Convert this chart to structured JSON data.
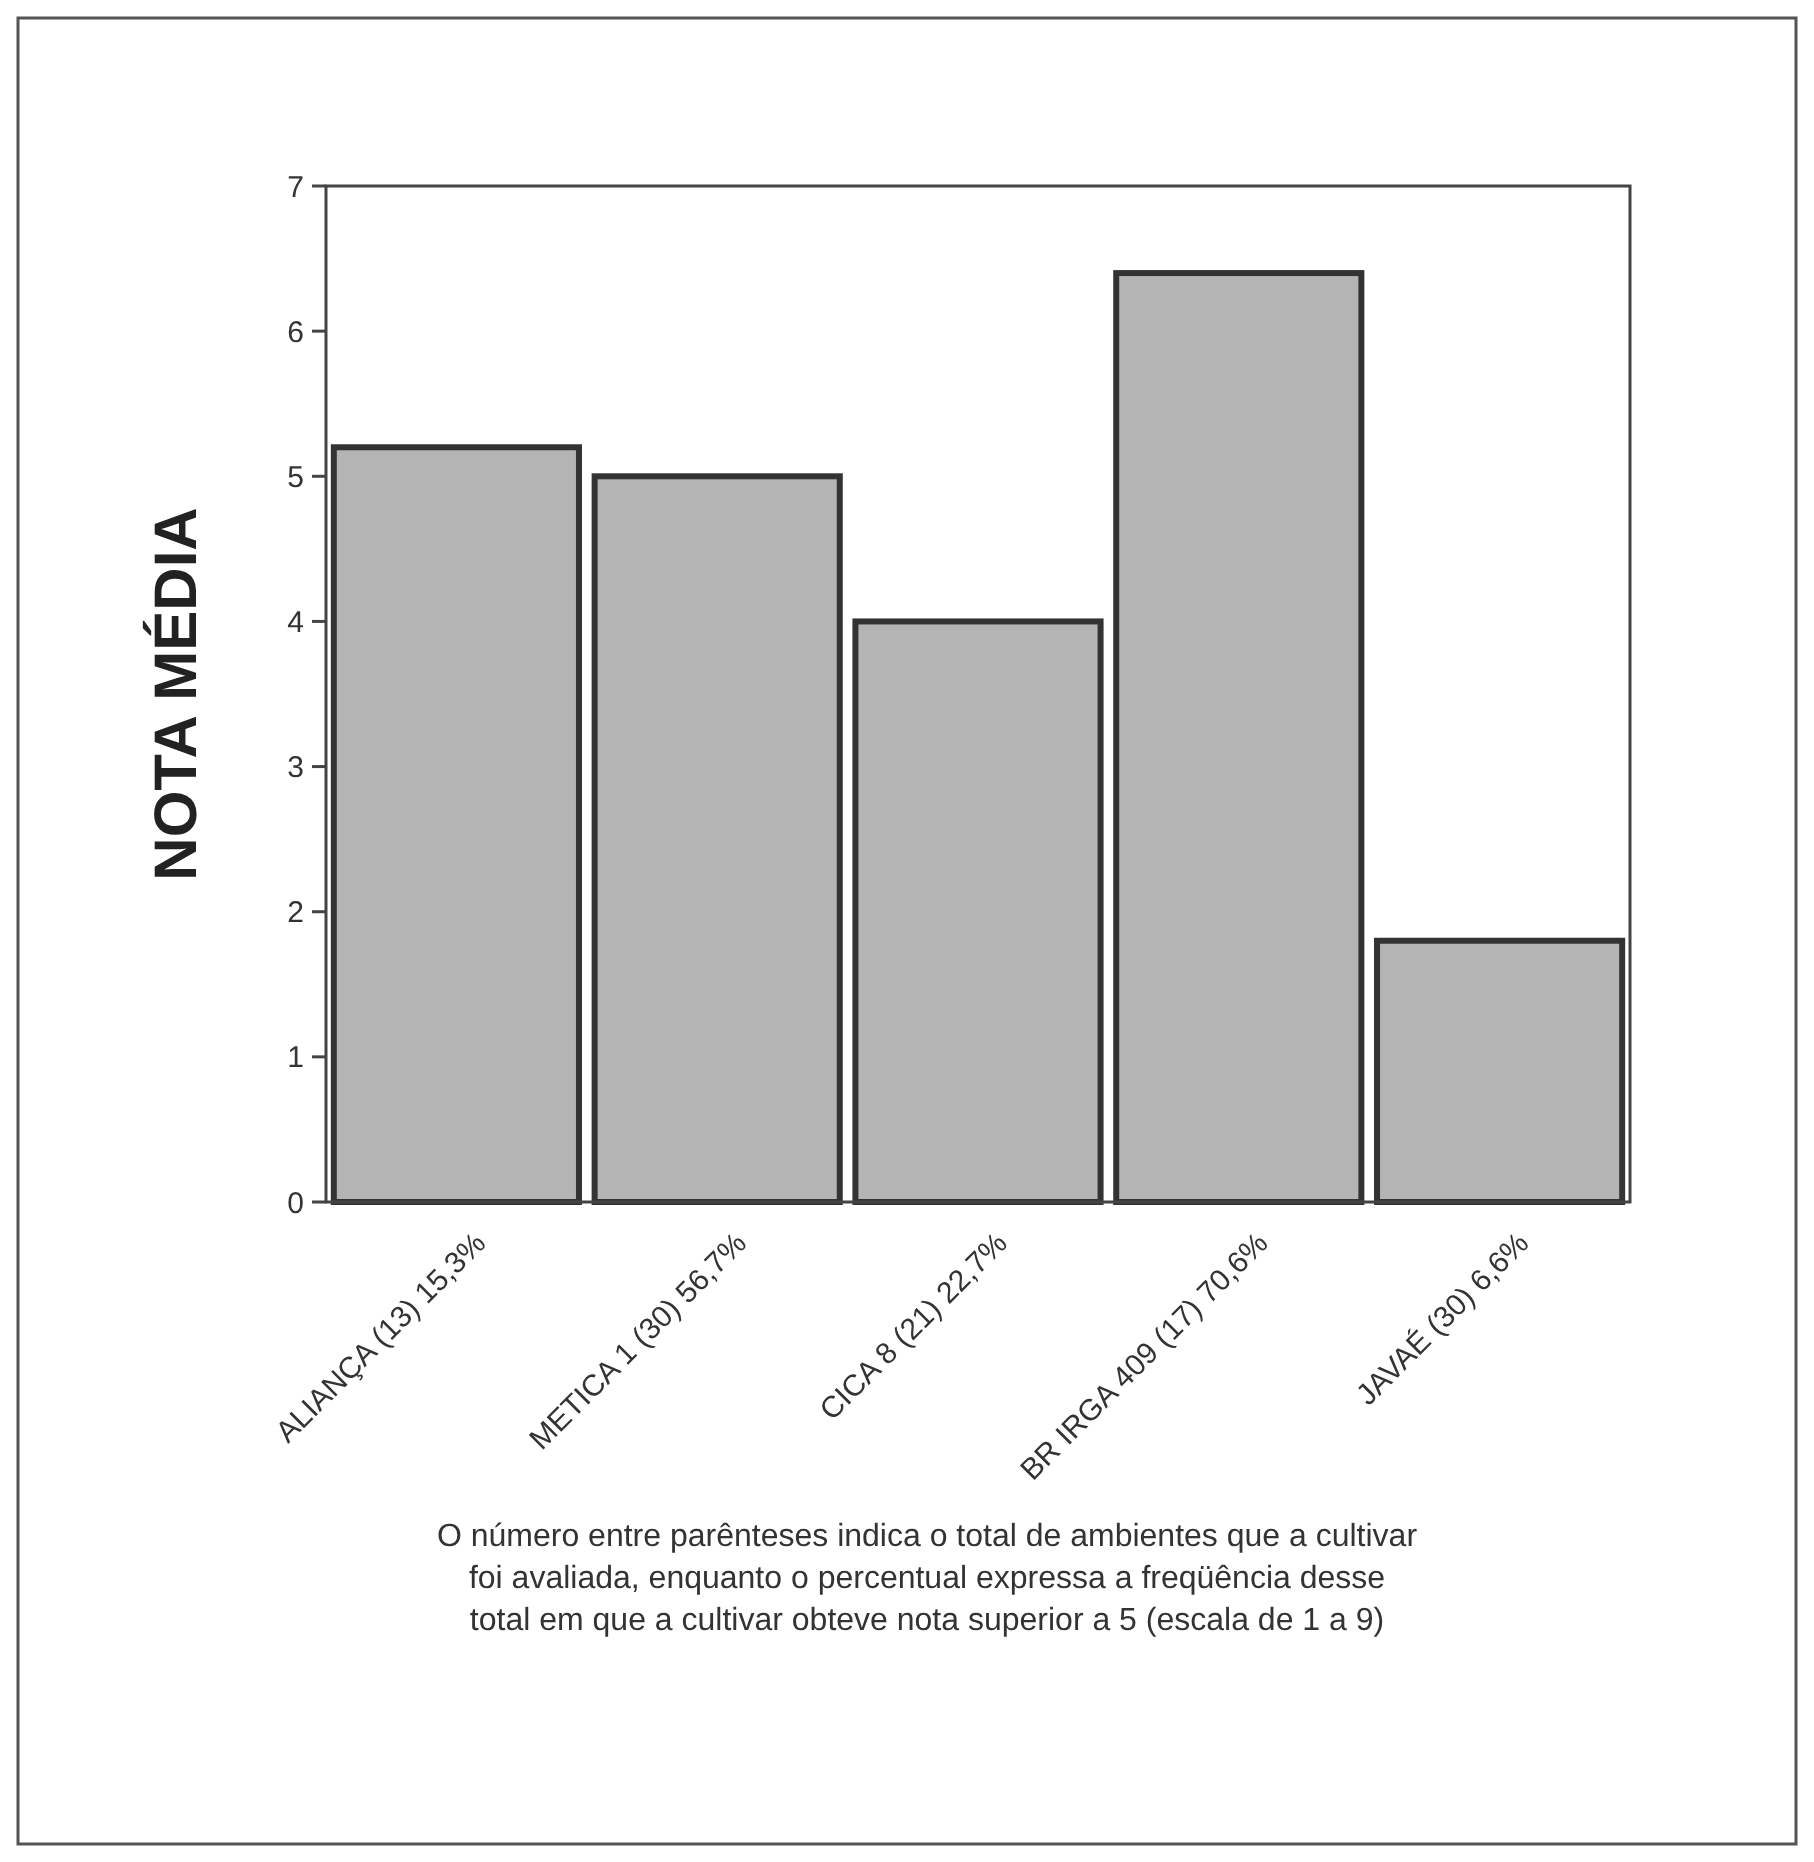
{
  "chart_data": {
    "type": "bar",
    "ylabel": "NOTA MÉDIA",
    "categories": [
      "ALIANÇA (13) 15,3%",
      "METICA 1 (30) 56,7%",
      "CICA 8 (21) 22,7%",
      "BR IRGA 409 (17) 70,6%",
      "JAVAÉ (30) 6,6%"
    ],
    "values": [
      5.2,
      5.0,
      4.0,
      6.4,
      1.8
    ],
    "color": "#b4b4b4",
    "ylim": [
      0,
      7
    ],
    "yticks": [
      0,
      1,
      2,
      3,
      4,
      5,
      6,
      7
    ],
    "grid": false,
    "annotations": [
      "O número entre parênteses indica o total de ambientes que a cultivar foi avaliada, enquanto o percentual expressa a freqüência desse total em que a cultivar obteve nota superior a 5 (escala de 1 a 9)"
    ]
  }
}
